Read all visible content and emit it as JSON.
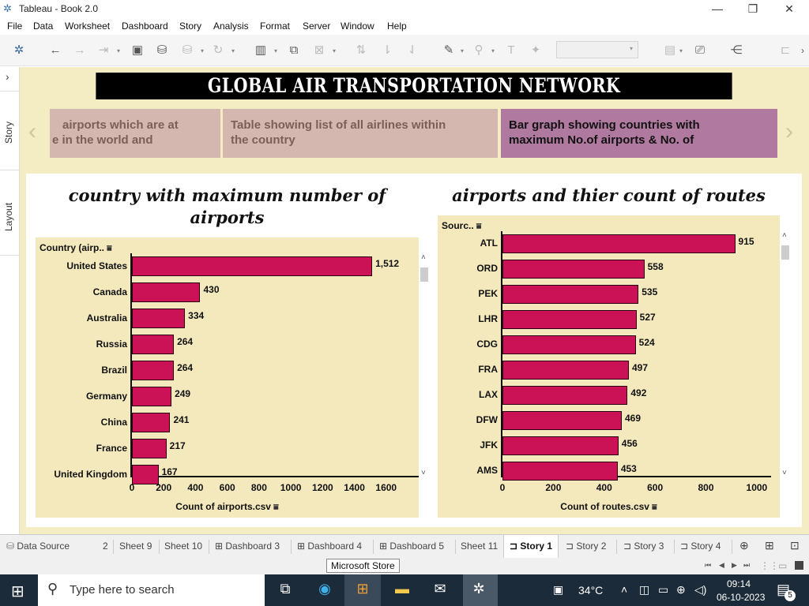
{
  "window": {
    "title": "Tableau - Book 2.0",
    "minimize": "—",
    "maximize": "❐",
    "close": "✕"
  },
  "menu": [
    "File",
    "Data",
    "Worksheet",
    "Dashboard",
    "Story",
    "Analysis",
    "Format",
    "Server",
    "Window",
    "Help"
  ],
  "side_tabs": {
    "story": "Story",
    "layout": "Layout"
  },
  "story": {
    "banner": "GLOBAL AIR TRANSPORTATION NETWORK",
    "points": [
      "e in the world and airports which are at",
      "Table showing list of all airlines within the country",
      "Bar graph showing countries with maximum No.of airports & No. of"
    ],
    "points_display": [
      {
        "line1": "airports which are at",
        "line2": "e in the world and"
      },
      {
        "line1": "Table showing list of all airlines within",
        "line2": "the country"
      },
      {
        "line1": "Bar graph showing countries with",
        "line2": "maximum No.of airports & No. of"
      }
    ]
  },
  "colors": {
    "bar": "#cc1256",
    "pane": "#f3e9bd",
    "story_bg": "#f4ecc3",
    "active_point": "#b07aa0",
    "inactive_point": "#d4b8b0"
  },
  "chart_data": [
    {
      "type": "bar",
      "orientation": "horizontal",
      "title": "country with maximum number of airports",
      "title_lines": [
        "country with maximum number of",
        "airports"
      ],
      "row_header": "Country (airp..",
      "xlabel": "Count of airports.csv",
      "categories": [
        "United States",
        "Canada",
        "Australia",
        "Russia",
        "Brazil",
        "Germany",
        "China",
        "France",
        "United Kingdom"
      ],
      "values": [
        1512,
        430,
        334,
        264,
        264,
        249,
        241,
        217,
        167
      ],
      "xlim": [
        0,
        1800
      ],
      "xticks": [
        0,
        200,
        400,
        600,
        800,
        1000,
        1200,
        1400,
        1600
      ]
    },
    {
      "type": "bar",
      "orientation": "horizontal",
      "title": "airports and thier count of  routes",
      "row_header": "Sourc..",
      "xlabel": "Count of routes.csv",
      "categories": [
        "ATL",
        "ORD",
        "PEK",
        "LHR",
        "CDG",
        "FRA",
        "LAX",
        "DFW",
        "JFK",
        "AMS"
      ],
      "values": [
        915,
        558,
        535,
        527,
        524,
        497,
        492,
        469,
        456,
        453
      ],
      "xlim": [
        0,
        1050
      ],
      "xticks": [
        0,
        200,
        400,
        600,
        800,
        1000
      ]
    }
  ],
  "tabs": [
    "Data Source",
    "2",
    "Sheet 9",
    "Sheet 10",
    "Dashboard 3",
    "Dashboard 4",
    "Dashboard 5",
    "Sheet 11",
    "Story 1",
    "Story 2",
    "Story 3",
    "Story 4"
  ],
  "active_tab": "Story 1",
  "tooltip": "Microsoft Store",
  "taskbar": {
    "search_placeholder": "Type here to search",
    "temperature": "34°C",
    "time": "09:14",
    "date": "06-10-2023",
    "notifications": "5"
  }
}
